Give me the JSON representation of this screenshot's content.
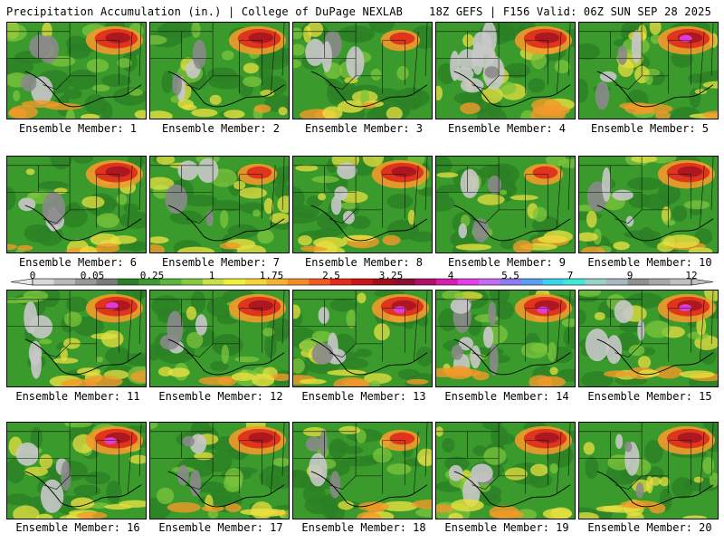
{
  "header": {
    "title": "Precipitation Accumulation (in.) | College of DuPage NEXLAB",
    "run_info": "18Z GEFS | F156 Valid: 06Z SUN SEP 28 2025"
  },
  "panels": [
    {
      "caption": "Ensemble Member: 1",
      "seed": 11,
      "heavy": "NE"
    },
    {
      "caption": "Ensemble Member: 2",
      "seed": 23,
      "heavy": "NE"
    },
    {
      "caption": "Ensemble Member: 3",
      "seed": 37,
      "heavy": "NE-light"
    },
    {
      "caption": "Ensemble Member: 4",
      "seed": 41,
      "heavy": "NE-dry"
    },
    {
      "caption": "Ensemble Member: 5",
      "seed": 53,
      "heavy": "NE-magenta"
    },
    {
      "caption": "Ensemble Member: 6",
      "seed": 67,
      "heavy": "NE"
    },
    {
      "caption": "Ensemble Member: 7",
      "seed": 71,
      "heavy": "NE-light"
    },
    {
      "caption": "Ensemble Member: 8",
      "seed": 83,
      "heavy": "NE"
    },
    {
      "caption": "Ensemble Member: 9",
      "seed": 97,
      "heavy": "NE-light"
    },
    {
      "caption": "Ensemble Member: 10",
      "seed": 101,
      "heavy": "NE"
    },
    {
      "caption": "Ensemble Member: 11",
      "seed": 113,
      "heavy": "NE-magenta"
    },
    {
      "caption": "Ensemble Member: 12",
      "seed": 127,
      "heavy": "NE"
    },
    {
      "caption": "Ensemble Member: 13",
      "seed": 131,
      "heavy": "NE-magenta"
    },
    {
      "caption": "Ensemble Member: 14",
      "seed": 149,
      "heavy": "NE-magenta-dry"
    },
    {
      "caption": "Ensemble Member: 15",
      "seed": 151,
      "heavy": "NE-magenta"
    },
    {
      "caption": "Ensemble Member: 16",
      "seed": 163,
      "heavy": "NE-magenta"
    },
    {
      "caption": "Ensemble Member: 17",
      "seed": 173,
      "heavy": "NE"
    },
    {
      "caption": "Ensemble Member: 18",
      "seed": 181,
      "heavy": "NE-light"
    },
    {
      "caption": "Ensemble Member: 19",
      "seed": 191,
      "heavy": "NE"
    },
    {
      "caption": "Ensemble Member: 20",
      "seed": 197,
      "heavy": "NE"
    }
  ],
  "colorbar": {
    "labels": [
      "0",
      "0.05",
      "0.25",
      "1",
      "1.75",
      "2.5",
      "3.25",
      "4",
      "5.5",
      "7",
      "9",
      "12"
    ],
    "colors": [
      "#d8d8d8",
      "#b8b8b8",
      "#989898",
      "#7a7a7a",
      "#2e7d2a",
      "#3f9a36",
      "#5cb53e",
      "#84c93f",
      "#c9e04a",
      "#f0f03c",
      "#f5d53a",
      "#f5b232",
      "#f28c2a",
      "#ee5c24",
      "#e52a1c",
      "#c8141a",
      "#a00f1a",
      "#8a1030",
      "#b0106a",
      "#d51eb0",
      "#e63ee6",
      "#c46cf0",
      "#8c7cf0",
      "#5aa0f0",
      "#3cd2f0",
      "#40e8d8",
      "#9ad0c8",
      "#a8b8c0",
      "#909090",
      "#a8a8a8",
      "#c0c0c0"
    ]
  },
  "legend_colors": {
    "dry": "#c8c8c8",
    "trace": "#888888",
    "light_green": "#3f9a36",
    "moderate_yellow": "#e8e040",
    "orange": "#f29a2a",
    "red": "#e02a1c",
    "dark_red": "#a01020",
    "magenta": "#e03ee0"
  }
}
